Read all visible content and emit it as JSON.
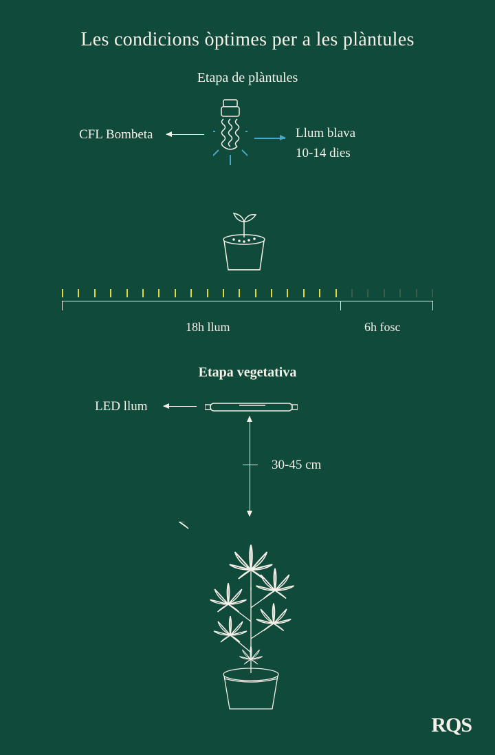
{
  "background_color": "#0f4a3a",
  "text_color": "#f5f0e8",
  "accent_blue": "#4aa8c4",
  "tick_light": "#e0d943",
  "tick_dark": "#3a5c4a",
  "title": "Les condicions òptimes per a les plàntules",
  "title_fontsize": 28,
  "seedling_stage": {
    "heading": "Etapa de plàntules",
    "bulb_label": "CFL Bombeta",
    "light_type": "Llum blava",
    "duration": "10-14 dies",
    "timeline": {
      "total_hours": 24,
      "light_hours": 18,
      "dark_hours": 6,
      "light_label": "18h llum",
      "dark_label": "6h fosc"
    }
  },
  "vegetative_stage": {
    "heading": "Etapa vegetativa",
    "light_label": "LED llum",
    "distance": "30-45 cm"
  },
  "brand": "RQS",
  "label_fontsize": 19
}
